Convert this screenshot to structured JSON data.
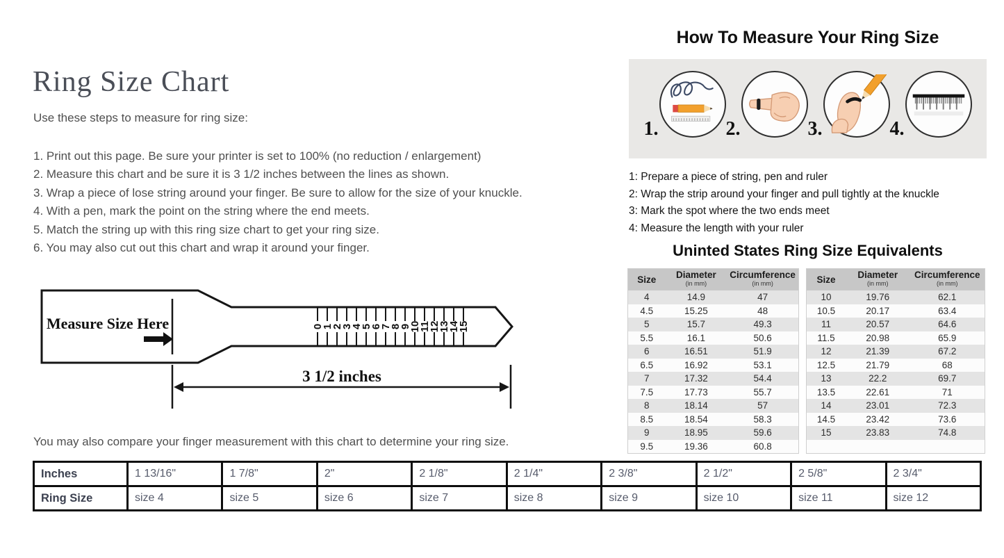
{
  "left": {
    "title": "Ring Size Chart",
    "intro": "Use these steps to measure for ring size:",
    "steps": [
      "1. Print out this page. Be sure your printer is set to 100% (no reduction / enlargement)",
      "2. Measure this chart and be sure it is 3 1/2 inches between the lines as shown.",
      "3. Wrap a piece of lose string around your finger. Be sure to allow for the size of your knuckle.",
      "4. With a pen, mark the point on the string where the end meets.",
      "5. Match the string up with this ring size chart to get your ring size.",
      "6. You may also cut out this chart and wrap it around your finger."
    ],
    "compare_note": "You may also compare your finger measurement with this chart to determine your ring size."
  },
  "ruler": {
    "label": "Measure Size Here",
    "ticks": [
      "0",
      "1",
      "2",
      "3",
      "4",
      "5",
      "6",
      "7",
      "8",
      "9",
      "10",
      "11",
      "12",
      "13",
      "14",
      "15"
    ],
    "width_label": "3 1/2 inches"
  },
  "how_to": {
    "title": "How To Measure Your Ring Size",
    "circle_numbers": [
      "1.",
      "2.",
      "3.",
      "4."
    ],
    "icons": [
      "string-and-pencil-icon",
      "hand-with-string-icon",
      "mark-knuckle-icon",
      "ruler-icon"
    ],
    "steps": [
      "1: Prepare a piece of string, pen and ruler",
      "2: Wrap the strip around your finger and pull tightly at the knuckle",
      "3: Mark the spot where the two ends meet",
      "4: Measure the length with your ruler"
    ]
  },
  "equivalents": {
    "title": "Uninted States Ring Size Equivalents",
    "headers": {
      "size": "Size",
      "diameter": "Diameter",
      "circumference": "Circumference",
      "unit": "(in mm)"
    },
    "left_rows": [
      [
        "4",
        "14.9",
        "47"
      ],
      [
        "4.5",
        "15.25",
        "48"
      ],
      [
        "5",
        "15.7",
        "49.3"
      ],
      [
        "5.5",
        "16.1",
        "50.6"
      ],
      [
        "6",
        "16.51",
        "51.9"
      ],
      [
        "6.5",
        "16.92",
        "53.1"
      ],
      [
        "7",
        "17.32",
        "54.4"
      ],
      [
        "7.5",
        "17.73",
        "55.7"
      ],
      [
        "8",
        "18.14",
        "57"
      ],
      [
        "8.5",
        "18.54",
        "58.3"
      ],
      [
        "9",
        "18.95",
        "59.6"
      ],
      [
        "9.5",
        "19.36",
        "60.8"
      ]
    ],
    "right_rows": [
      [
        "10",
        "19.76",
        "62.1"
      ],
      [
        "10.5",
        "20.17",
        "63.4"
      ],
      [
        "11",
        "20.57",
        "64.6"
      ],
      [
        "11.5",
        "20.98",
        "65.9"
      ],
      [
        "12",
        "21.39",
        "67.2"
      ],
      [
        "12.5",
        "21.79",
        "68"
      ],
      [
        "13",
        "22.2",
        "69.7"
      ],
      [
        "13.5",
        "22.61",
        "71"
      ],
      [
        "14",
        "23.01",
        "72.3"
      ],
      [
        "14.5",
        "23.42",
        "73.6"
      ],
      [
        "15",
        "23.83",
        "74.8"
      ]
    ]
  },
  "comparison": {
    "row_headers": [
      "Inches",
      "Ring Size"
    ],
    "inches": [
      "1 13/16\"",
      "1 7/8\"",
      "2\"",
      "2 1/8\"",
      "2 1/4\"",
      "2 3/8\"",
      "2 1/2\"",
      "2 5/8\"",
      "2 3/4\""
    ],
    "ring_sizes": [
      "size 4",
      "size 5",
      "size 6",
      "size 7",
      "size 8",
      "size 9",
      "size 10",
      "size 11",
      "size 12"
    ]
  },
  "colors": {
    "pencil_orange": "#f2a02c",
    "eraser_red": "#dd4a44",
    "string_navy": "#3c4964",
    "skin": "#f7cfb2",
    "skin_outline": "#d49a76",
    "table_header_gray": "#c7c7c7",
    "table_row_gray": "#e4e4e4",
    "panel_gray": "#e9e8e6",
    "ink_black": "#111111"
  }
}
